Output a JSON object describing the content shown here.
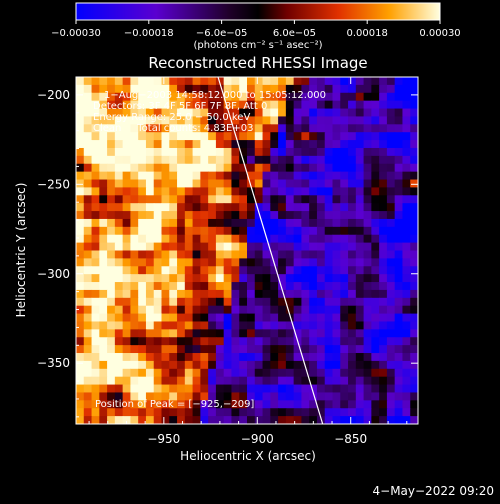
{
  "chart_data": {
    "type": "heatmap",
    "title": "Reconstructed RHESSI Image",
    "xlabel": "Heliocentric X (arcsec)",
    "ylabel": "Heliocentric Y (arcsec)",
    "xlim": [
      -997,
      -814
    ],
    "ylim": [
      -384,
      -190
    ],
    "x_ticks": [
      -950,
      -900,
      -850
    ],
    "x_tick_labels": [
      "−950",
      "−900",
      "−850"
    ],
    "y_ticks": [
      -200,
      -250,
      -300,
      -350
    ],
    "y_tick_labels": [
      "−200",
      "−250",
      "−300",
      "−350"
    ],
    "colorbar": {
      "range": [
        -0.0003,
        0.0003
      ],
      "tick_values": [
        -0.0003,
        -0.00018,
        -6e-05,
        6e-05,
        0.00018,
        0.0003
      ],
      "tick_labels": [
        "−0.00030",
        "−0.00018",
        "−6.0e−05",
        "6.0e−05",
        "0.00018",
        "0.00030"
      ],
      "unit_label": "(photons cm⁻² s⁻¹ asec⁻²)",
      "colors": [
        "#0000ff",
        "#6a00c8",
        "#000000",
        "#c00000",
        "#ff8c00",
        "#ffffc0"
      ]
    },
    "annotations": [
      "1−Aug−2003 14:58:12.000 to 15:05:12.000",
      "Detectors: 3F 4F 5F 6F 7F 8F, Att 0",
      "Energy Range: 25.0 − 50.0 keV",
      "Clean     Total counts: 4.83E+03"
    ],
    "peak_label": "Position of Peak = [−925,−209]",
    "peak_position": [
      -925,
      -209
    ],
    "limb_line": [
      [
        -921,
        -190
      ],
      [
        -865,
        -384
      ]
    ],
    "timestamp": "4−May−2022 09:20"
  }
}
